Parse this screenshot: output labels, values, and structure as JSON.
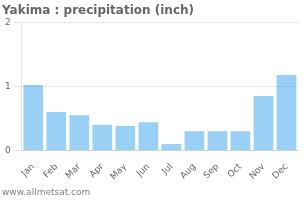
{
  "chart_data": {
    "type": "bar",
    "title": "Yakima : precipitation (inch)",
    "categories": [
      "Jan",
      "Feb",
      "Mar",
      "Apr",
      "May",
      "Jun",
      "Jul",
      "Aug",
      "Sep",
      "Oct",
      "Nov",
      "Dec"
    ],
    "values": [
      1.02,
      0.6,
      0.55,
      0.4,
      0.38,
      0.44,
      0.1,
      0.3,
      0.3,
      0.3,
      0.85,
      1.18
    ],
    "ylim": [
      0,
      2.0
    ],
    "yticks": [
      0,
      1,
      2
    ],
    "grid": true,
    "annotations": [
      "www.allmetsat.com"
    ]
  }
}
